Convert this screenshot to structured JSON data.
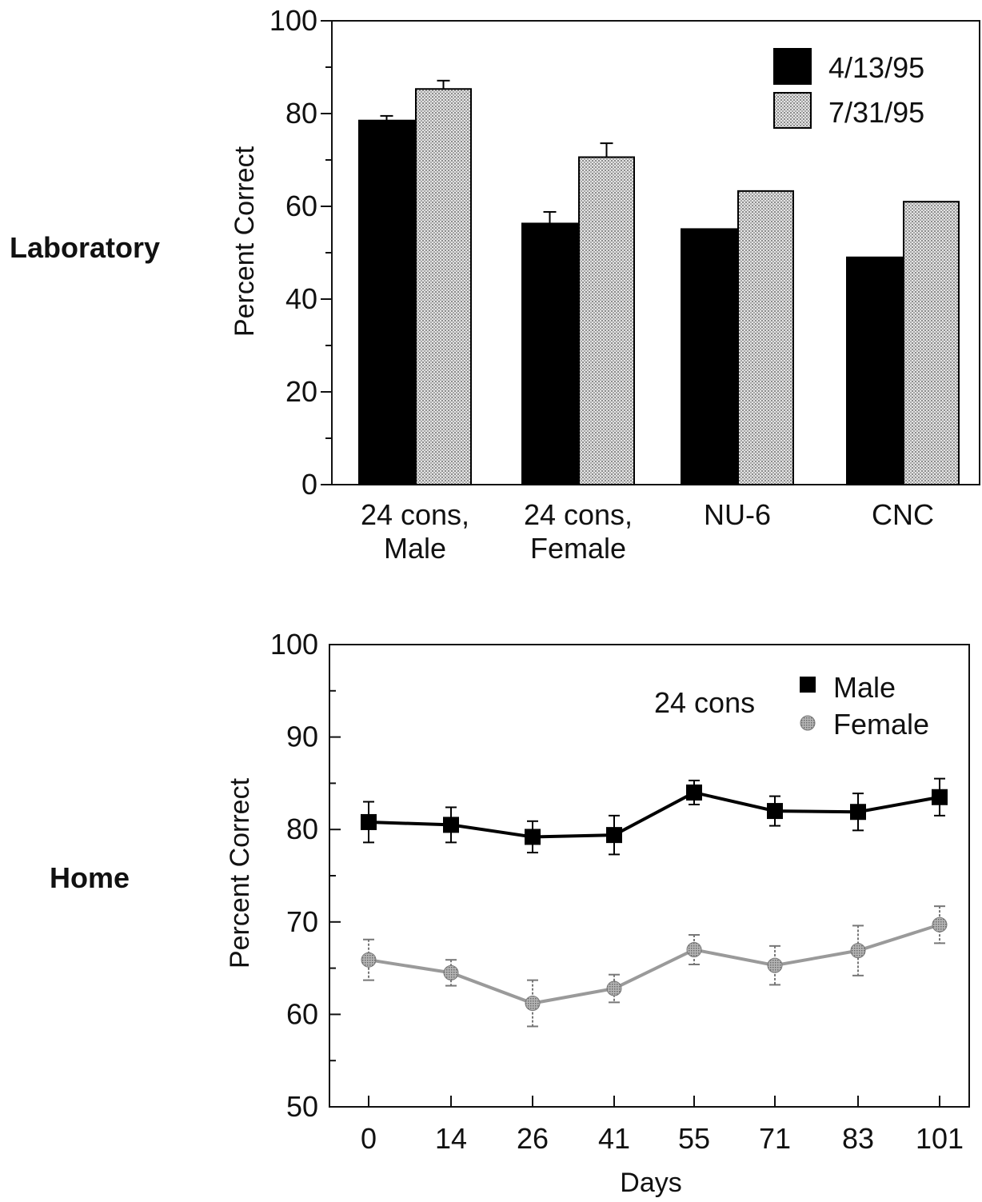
{
  "chart_data": [
    {
      "type": "bar",
      "panel_label": "Laboratory",
      "ylabel": "Percent Correct",
      "xlabel": "",
      "ylim": [
        0,
        100
      ],
      "yticks": [
        "0",
        "20",
        "40",
        "60",
        "80",
        "100"
      ],
      "categories": [
        [
          "24 cons,",
          "Male"
        ],
        [
          "24 cons,",
          "Female"
        ],
        [
          "NU-6"
        ],
        [
          "CNC"
        ]
      ],
      "legend_position": "top-right",
      "series": [
        {
          "name": "4/13/95",
          "color": "#000000",
          "values": [
            78.5,
            56.3,
            55.1,
            49.0
          ],
          "errors": [
            1.0,
            2.5,
            null,
            null
          ]
        },
        {
          "name": "7/31/95",
          "color": "#d4d4d4",
          "values": [
            85.3,
            70.6,
            63.3,
            61.0
          ],
          "errors": [
            1.8,
            3.0,
            null,
            null
          ]
        }
      ]
    },
    {
      "type": "line",
      "panel_label": "Home",
      "ylabel": "Percent Correct",
      "xlabel": "Days",
      "ylim": [
        50,
        100
      ],
      "yticks": [
        "50",
        "60",
        "70",
        "80",
        "90",
        "100"
      ],
      "x": [
        "0",
        "14",
        "26",
        "41",
        "55",
        "71",
        "83",
        "101"
      ],
      "legend_title": "24 cons",
      "legend_position": "top-right",
      "series": [
        {
          "name": "Male",
          "color": "#000000",
          "marker": "square",
          "values": [
            80.8,
            80.5,
            79.2,
            79.4,
            84.0,
            82.0,
            81.9,
            83.5
          ],
          "errors": [
            2.2,
            1.9,
            1.7,
            2.1,
            1.3,
            1.6,
            2.0,
            2.0
          ]
        },
        {
          "name": "Female",
          "color": "#9a9a9a",
          "marker": "circle",
          "values": [
            65.9,
            64.5,
            61.2,
            62.8,
            67.0,
            65.3,
            66.9,
            69.7
          ],
          "errors": [
            2.2,
            1.4,
            2.5,
            1.5,
            1.6,
            2.1,
            2.7,
            2.0
          ]
        }
      ]
    }
  ]
}
